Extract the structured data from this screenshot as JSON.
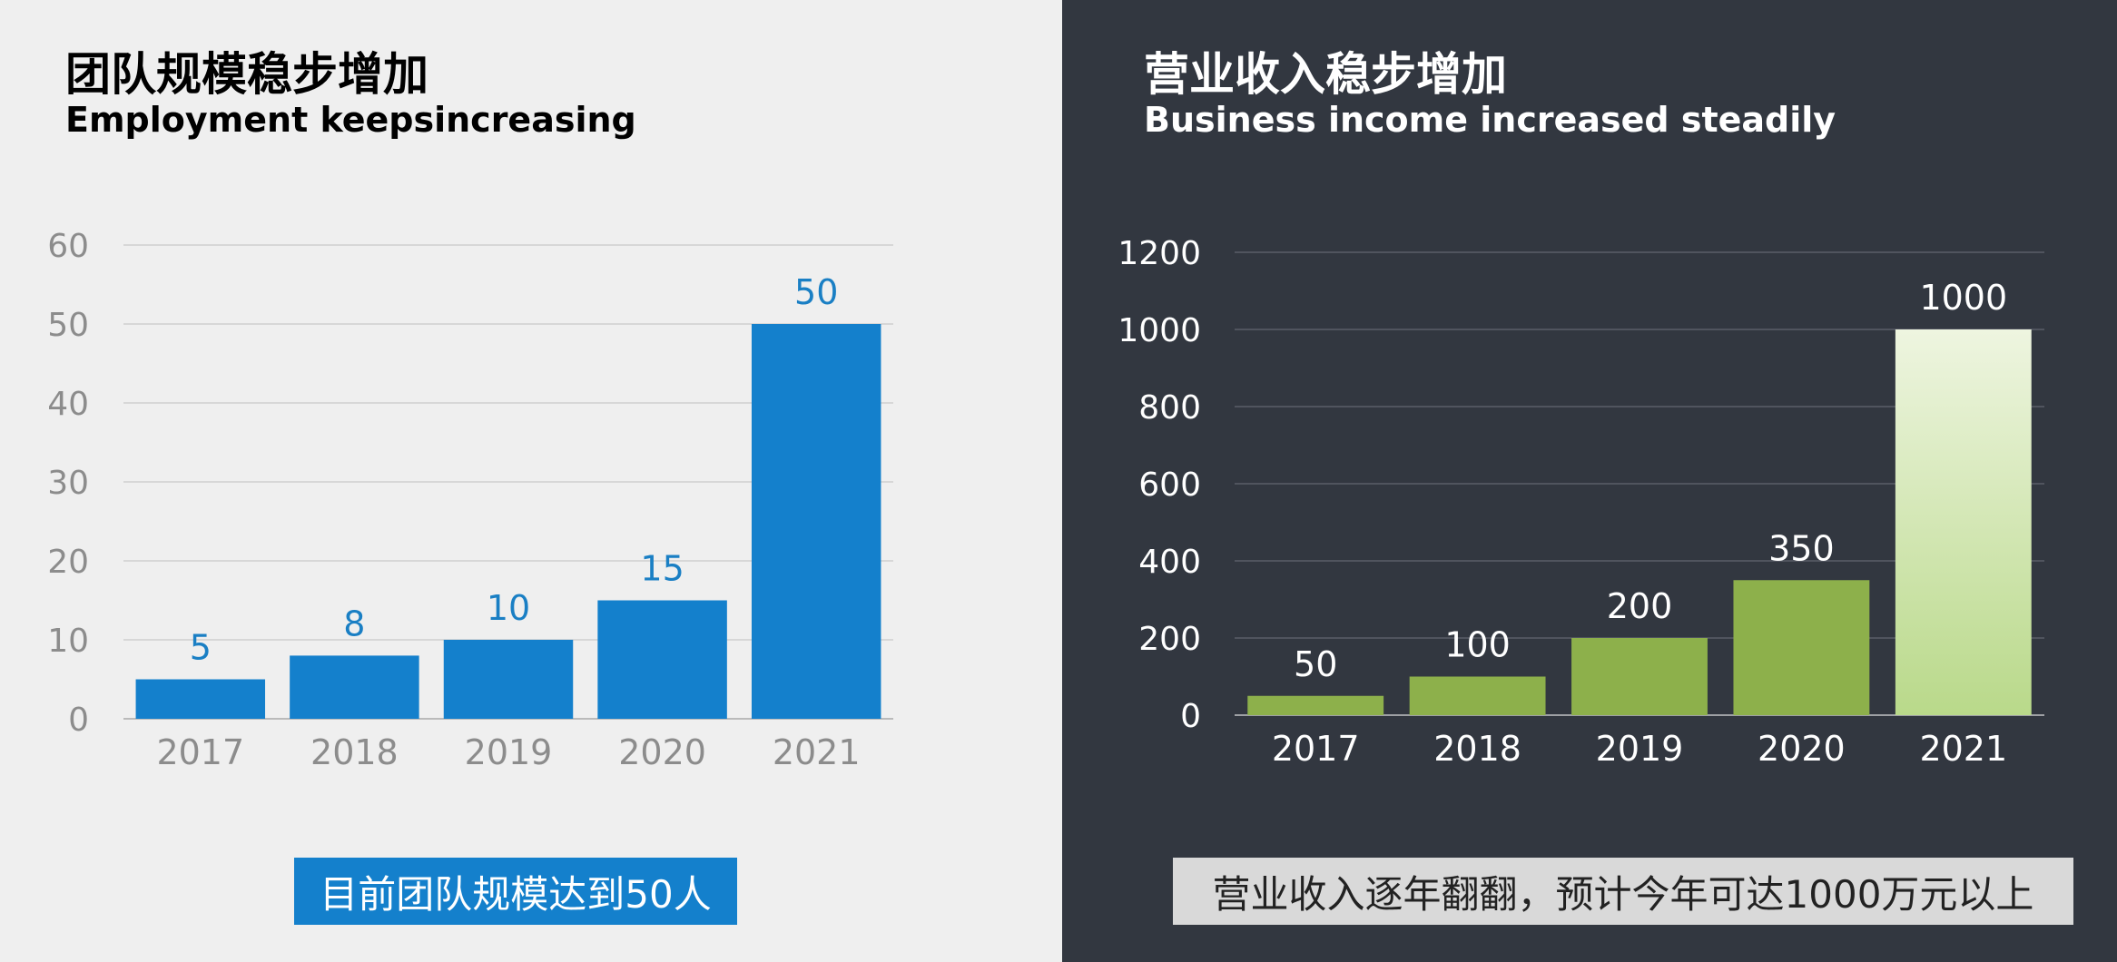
{
  "panels": {
    "left": {
      "title_cn": "团队规模稳步增加",
      "title_en": "Employment keepsincreasing",
      "caption": "目前团队规模达到50人",
      "colors": {
        "background": "#efefef",
        "bar": "#1480cc",
        "label": "#1a7fc4",
        "tick": "#8c8c8c",
        "grid": "#cfcfcf"
      }
    },
    "right": {
      "title_cn": "营业收入稳步增加",
      "title_en": "Business income increased steadily",
      "caption": "营业收入逐年翻翻，预计今年可达1000万元以上",
      "colors": {
        "background": "#323740",
        "bar": "#8db04b",
        "bar_highlight_top": "#eef5e0",
        "bar_highlight_bottom": "#b9d98a",
        "label": "#ffffff",
        "tick": "#ffffff",
        "grid": "#5a5f68"
      }
    }
  },
  "chart_data": [
    {
      "type": "bar",
      "categories": [
        "2017",
        "2018",
        "2019",
        "2020",
        "2021"
      ],
      "values": [
        5,
        8,
        10,
        15,
        50
      ],
      "ylim": [
        0,
        60
      ],
      "yticks": [
        0,
        10,
        20,
        30,
        40,
        50,
        60
      ],
      "grid": true,
      "data_labels": true
    },
    {
      "type": "bar",
      "categories": [
        "2017",
        "2018",
        "2019",
        "2020",
        "2021"
      ],
      "values": [
        50,
        100,
        200,
        350,
        1000
      ],
      "ylim": [
        0,
        1200
      ],
      "yticks": [
        0,
        200,
        400,
        600,
        800,
        1000,
        1200
      ],
      "grid": true,
      "data_labels": true,
      "highlight": "2021"
    }
  ]
}
